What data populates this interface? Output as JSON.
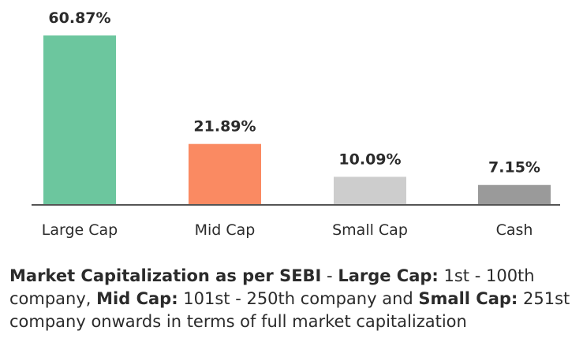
{
  "chart_data": {
    "type": "bar",
    "categories": [
      "Large Cap",
      "Mid Cap",
      "Small Cap",
      "Cash"
    ],
    "values": [
      60.87,
      21.89,
      10.09,
      7.15
    ],
    "value_labels": [
      "60.87%",
      "21.89%",
      "10.09%",
      "7.15%"
    ],
    "colors": [
      "#6cc69e",
      "#fa8a62",
      "#cdcdcd",
      "#9a9a9a"
    ],
    "ylim": [
      0,
      60.87
    ],
    "grid": false,
    "legend": "none"
  },
  "note": {
    "lead": "Market Capitalization as per SEBI",
    "sep": " - ",
    "large_term": "Large Cap:",
    "large_desc": " 1st - 100th company, ",
    "mid_term": "Mid Cap:",
    "mid_desc": " 101st - 250th company and ",
    "small_term": "Small Cap:",
    "small_desc": " 251st company onwards in terms of full market capitalization"
  }
}
